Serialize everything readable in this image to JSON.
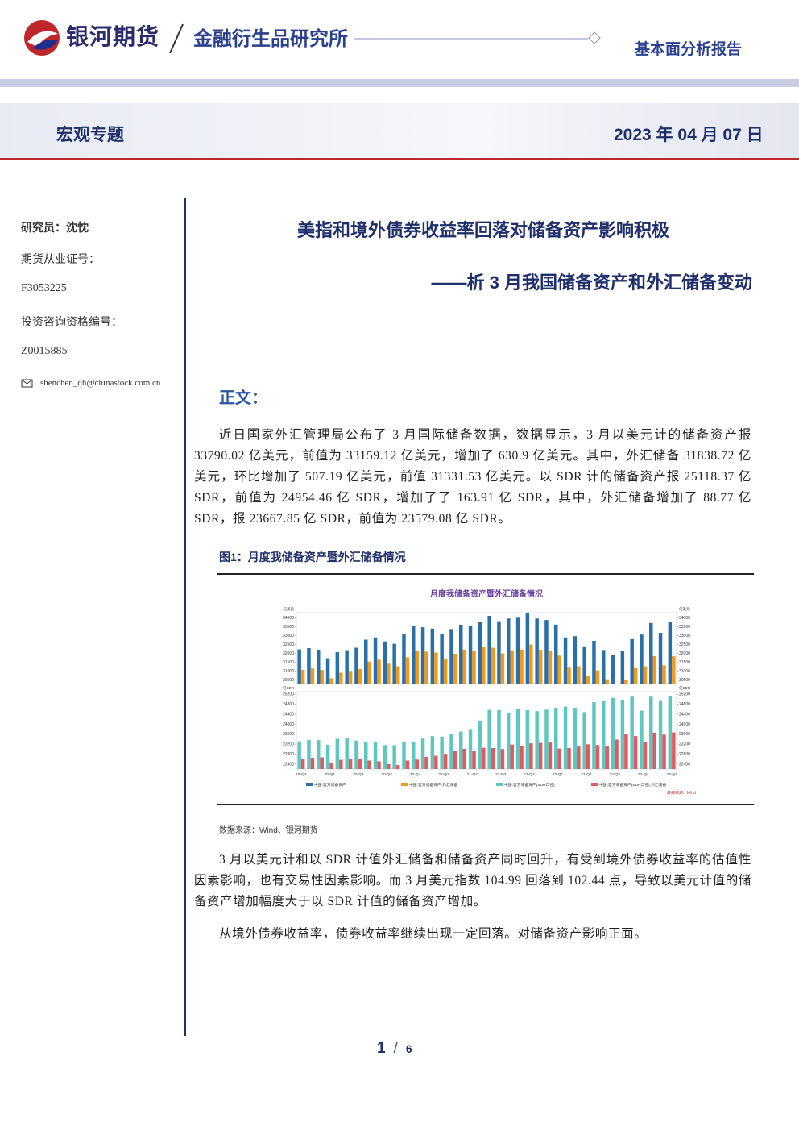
{
  "header": {
    "brand": "银河期货",
    "institute": "金融衍生品研究所",
    "report_type": "基本面分析报告",
    "section": "宏观专题",
    "date": "2023 年 04 月 07 日"
  },
  "sidebar": {
    "researcher": "研究员：沈忱",
    "license_label": "期货从业证号：",
    "license": "F3053225",
    "advisor_label": "投资咨询资格编号：",
    "advisor": "Z0015885",
    "email": "shenchen_qh@chinastock.com.cn"
  },
  "title": "美指和境外债券收益率回落对储备资产影响积极",
  "subtitle": "——析 3 月我国储备资产和外汇储备变动",
  "body_heading": "正文：",
  "paragraphs": [
    "近日国家外汇管理局公布了 3 月国际储备数据，数据显示，3 月以美元计的储备资产报 33790.02 亿美元，前值为 33159.12 亿美元，增加了 630.9 亿美元。其中，外汇储备 31838.72 亿美元，环比增加了 507.19 亿美元，前值 31331.53 亿美元。以 SDR 计的储备资产报 25118.37 亿 SDR，前值为 24954.46 亿 SDR，增加了了 163.91 亿 SDR，其中，外汇储备增加了 88.77 亿 SDR，报 23667.85 亿 SDR，前值为 23579.08 亿 SDR。",
    "3 月以美元计和以 SDR 计值外汇储备和储备资产同时回升，有受到境外债券收益率的估值性因素影响，也有交易性因素影响。而 3 月美元指数 104.99 回落到 102.44 点，导致以美元计值的储备资产增加幅度大于以 SDR 计值的储备资产增加。",
    "从境外债券收益率，债券收益率继续出现一定回落。对储备资产影响正面。"
  ],
  "figure_caption": "图1：月度我储备资产暨外汇储备情况",
  "figure_source": "数据来源：Wind、银河期货",
  "page": {
    "current": "1",
    "total": "6"
  },
  "chart_data": [
    {
      "type": "bar",
      "title": "月度我储备资产暨外汇储备情况",
      "y_unit": "亿美元",
      "ylim": [
        30300,
        34300
      ],
      "yticks": [
        30500,
        31000,
        31500,
        32000,
        32500,
        33000,
        33500,
        34000
      ],
      "y2lim": [
        30300,
        34300
      ],
      "y2ticks": [
        30500,
        31000,
        31500,
        32000,
        32500,
        33000,
        33500,
        34000
      ],
      "series": [
        {
          "name": "中国:官方储备资产",
          "color": "#2a6fa8",
          "values": [
            32229,
            32300,
            32212,
            31728,
            32070,
            32185,
            32320,
            32776,
            32902,
            32677,
            32544,
            33115,
            33565,
            33477,
            33400,
            33079,
            33375,
            33622,
            33535,
            33764,
            34118,
            33816,
            33971,
            34011,
            34305,
            33971,
            33887,
            33627,
            32902,
            32973,
            32400,
            32711,
            32192,
            31905,
            32130,
            32808,
            33065,
            33716,
            33159,
            33790
          ]
        },
        {
          "name": "中国:官方储备资产:外汇储备",
          "color": "#f39a1e",
          "values": [
            31079,
            31155,
            31067,
            30606,
            30915,
            31017,
            31123,
            31544,
            31646,
            31426,
            31280,
            31785,
            32165,
            32107,
            32050,
            31700,
            31982,
            32218,
            32140,
            32359,
            32321,
            32006,
            32176,
            32224,
            32502,
            32216,
            32138,
            31880,
            31197,
            31278,
            30713,
            31041,
            30549,
            30290,
            30524,
            31175,
            31277,
            31845,
            31332,
            31839
          ]
        }
      ]
    },
    {
      "type": "bar",
      "y_unit": "亿SDR",
      "categories": [
        "19-Q4",
        null,
        null,
        "20-Q1",
        null,
        null,
        "20-Q2",
        null,
        null,
        "20-Q3",
        null,
        null,
        "20-Q4",
        null,
        null,
        "21-Q1",
        null,
        null,
        "21-Q2",
        null,
        null,
        "21-Q3",
        null,
        null,
        "21-Q4",
        null,
        null,
        "22-Q1",
        null,
        null,
        "22-Q2",
        null,
        null,
        "22-Q3",
        null,
        null,
        "22-Q4",
        null,
        null,
        "23-Q1"
      ],
      "ylim": [
        22200,
        25300
      ],
      "yticks": [
        22400,
        22800,
        23200,
        23600,
        24000,
        24400,
        24800,
        25200
      ],
      "y2lim": [
        22200,
        25300
      ],
      "y2ticks": [
        22400,
        22800,
        23200,
        23600,
        24000,
        24400,
        24800,
        25200
      ],
      "series": [
        {
          "name": "中国:官方储备资产(SDR口径)",
          "color": "#5fc7bf",
          "values": [
            23310,
            23370,
            23360,
            23170,
            23410,
            23440,
            23340,
            23270,
            23270,
            23160,
            23160,
            23280,
            23300,
            23420,
            23520,
            23500,
            23620,
            23700,
            23800,
            24120,
            24570,
            24560,
            24460,
            24620,
            24560,
            24520,
            24580,
            24650,
            24700,
            24650,
            24480,
            24880,
            24930,
            25050,
            24980,
            25100,
            24540,
            25100,
            24954,
            25118
          ]
        },
        {
          "name": "中国:官方储备资产(SDR口径):外汇储备",
          "color": "#e05a60",
          "values": [
            22620,
            22650,
            22670,
            22460,
            22570,
            22620,
            22620,
            22540,
            22510,
            22400,
            22360,
            22540,
            22580,
            22690,
            22730,
            22810,
            22940,
            23010,
            22930,
            23050,
            23040,
            23000,
            23180,
            23120,
            23230,
            23250,
            23260,
            23020,
            23040,
            23100,
            23190,
            23160,
            23100,
            23380,
            23600,
            23520,
            23300,
            23660,
            23579,
            23668
          ]
        }
      ],
      "source": "数据来源：Wind"
    }
  ]
}
